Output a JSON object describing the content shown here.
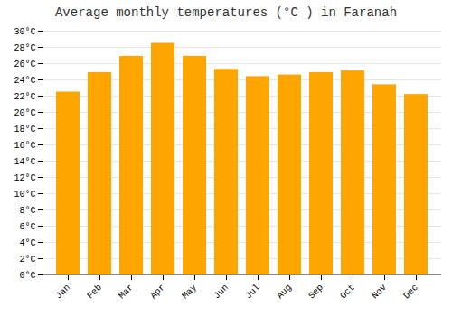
{
  "chart_data": {
    "type": "bar",
    "title": "Average monthly temperatures (°C ) in Faranah",
    "categories": [
      "Jan",
      "Feb",
      "Mar",
      "Apr",
      "May",
      "Jun",
      "Jul",
      "Aug",
      "Sep",
      "Oct",
      "Nov",
      "Dec"
    ],
    "values": [
      22.5,
      24.9,
      26.9,
      28.5,
      26.9,
      25.3,
      24.4,
      24.6,
      24.9,
      25.1,
      23.4,
      22.2
    ],
    "color": "#FFA500",
    "ylim": [
      0,
      30
    ],
    "yticks": [
      {
        "value": 0,
        "label": "0°C"
      },
      {
        "value": 2,
        "label": "2°C"
      },
      {
        "value": 4,
        "label": "4°C"
      },
      {
        "value": 6,
        "label": "6°C"
      },
      {
        "value": 8,
        "label": "8°C"
      },
      {
        "value": 10,
        "label": "10°C"
      },
      {
        "value": 12,
        "label": "12°C"
      },
      {
        "value": 14,
        "label": "14°C"
      },
      {
        "value": 16,
        "label": "16°C"
      },
      {
        "value": 18,
        "label": "18°C"
      },
      {
        "value": 20,
        "label": "20°C"
      },
      {
        "value": 22,
        "label": "22°C"
      },
      {
        "value": 24,
        "label": "24°C"
      },
      {
        "value": 26,
        "label": "26°C"
      },
      {
        "value": 28,
        "label": "28°C"
      },
      {
        "value": 30,
        "label": "30°C"
      }
    ],
    "grid": true
  }
}
